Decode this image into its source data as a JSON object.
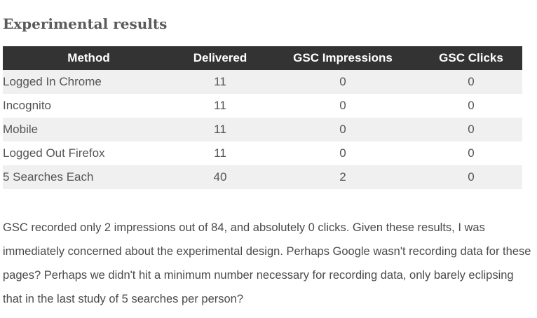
{
  "heading": "Experimental results",
  "table": {
    "headers": [
      "Method",
      "Delivered",
      "GSC Impressions",
      "GSC Clicks"
    ],
    "rows": [
      {
        "method": "Logged In Chrome",
        "delivered": "11",
        "impressions": "0",
        "clicks": "0"
      },
      {
        "method": "Incognito",
        "delivered": "11",
        "impressions": "0",
        "clicks": "0"
      },
      {
        "method": "Mobile",
        "delivered": "11",
        "impressions": "0",
        "clicks": "0"
      },
      {
        "method": "Logged Out Firefox",
        "delivered": "11",
        "impressions": "0",
        "clicks": "0"
      },
      {
        "method": "5 Searches Each",
        "delivered": "40",
        "impressions": "2",
        "clicks": "0"
      }
    ]
  },
  "paragraph": "GSC recorded only 2 impressions out of 84, and absolutely 0 clicks. Given these results, I was immediately concerned about the experimental design. Perhaps Google wasn't recording data for these pages? Perhaps we didn't hit a minimum number necessary for recording data, only barely eclipsing that in the last study of 5 searches per person?"
}
